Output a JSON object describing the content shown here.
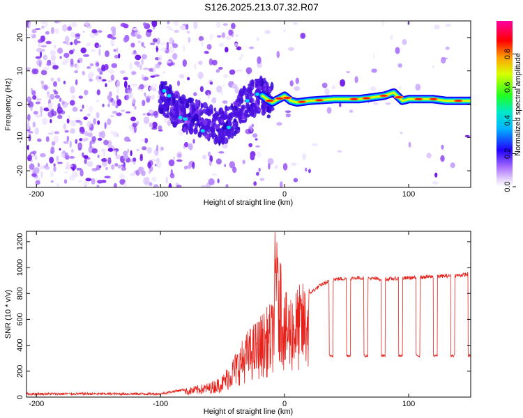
{
  "title": "S126.2025.213.07.32.R07",
  "colors": {
    "snr_line": "#e8201a",
    "spectrogram_low": "#a66cff",
    "spectrogram_mid": "#00e0ff",
    "spectrogram_high": "#ff0000"
  },
  "chart_data": [
    {
      "type": "heatmap",
      "name": "spectrogram",
      "xlabel": "Height of straight line (km)",
      "ylabel": "Frequency (Hz)",
      "xlim": [
        -208,
        150
      ],
      "ylim": [
        -25,
        25
      ],
      "xticks": [
        -200,
        -100,
        0,
        100
      ],
      "yticks": [
        -20,
        -10,
        0,
        10,
        20
      ],
      "colorbar": {
        "label": "Normalized spectral amplitude",
        "range": [
          0.0,
          1.0
        ],
        "ticks": [
          "0.0",
          "0.2",
          "0.4",
          "0.6",
          "0.8"
        ],
        "tick_values": [
          0.0,
          0.2,
          0.4,
          0.6,
          0.8
        ]
      },
      "dominant_track": {
        "x": [
          -100,
          -90,
          -80,
          -70,
          -60,
          -50,
          -40,
          -30,
          -20,
          -10,
          0,
          5,
          10,
          20,
          40,
          60,
          80,
          88,
          95,
          100,
          110,
          120,
          130,
          140,
          150
        ],
        "y": [
          3,
          -1,
          -3,
          -4,
          -6,
          -7,
          -4,
          1,
          3,
          0.5,
          2.5,
          1,
          0.5,
          1,
          1.5,
          1.5,
          2.5,
          3.5,
          1,
          1.5,
          1.5,
          1.5,
          1,
          1,
          1
        ]
      }
    },
    {
      "type": "line",
      "name": "snr",
      "xlabel": "Height of straight line (km)",
      "ylabel": "SNR (10 * v/v)",
      "xlim": [
        -208,
        150
      ],
      "ylim": [
        0,
        1280
      ],
      "xticks": [
        -200,
        -100,
        0,
        100
      ],
      "yticks": [
        0,
        200,
        400,
        600,
        800,
        1000,
        1200
      ],
      "envelope": {
        "x": [
          -208,
          -100,
          -80,
          -60,
          -50,
          -40,
          -30,
          -20,
          -10,
          -6,
          0,
          10,
          20,
          30,
          40,
          60,
          80,
          100,
          120,
          140,
          150
        ],
        "y": [
          25,
          25,
          60,
          100,
          150,
          300,
          450,
          550,
          650,
          1280,
          700,
          750,
          800,
          870,
          910,
          920,
          910,
          920,
          930,
          940,
          950
        ]
      },
      "dropouts_y": 320
    }
  ]
}
